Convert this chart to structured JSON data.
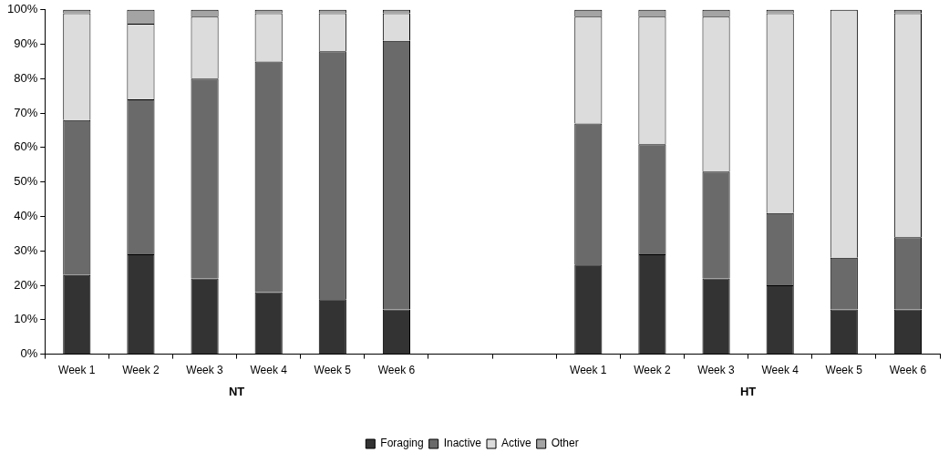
{
  "chart_data": {
    "type": "bar",
    "stacked": true,
    "categories": [
      "Week 1",
      "Week 2",
      "Week 3",
      "Week 4",
      "Week 5",
      "Week 6",
      null,
      null,
      "Week 1",
      "Week 2",
      "Week 3",
      "Week 4",
      "Week 5",
      "Week 6"
    ],
    "series": [
      {
        "name": "Foraging",
        "color": "#333333",
        "values": [
          23,
          29,
          22,
          18,
          16,
          13,
          null,
          null,
          26,
          29,
          22,
          20,
          13,
          13
        ]
      },
      {
        "name": "Inactive",
        "color": "#6a6a6a",
        "values": [
          45,
          45,
          58,
          67,
          72,
          78,
          null,
          null,
          41,
          32,
          31,
          21,
          15,
          21
        ]
      },
      {
        "name": "Active",
        "color": "#dcdcdc",
        "values": [
          31,
          22,
          18,
          14,
          11,
          8,
          null,
          null,
          31,
          37,
          45,
          58,
          72,
          65
        ]
      },
      {
        "name": "Other",
        "color": "#a4a4a4",
        "values": [
          1,
          4,
          2,
          1,
          1,
          1,
          null,
          null,
          2,
          2,
          2,
          1,
          0,
          1
        ]
      }
    ],
    "ylim": [
      0,
      100
    ],
    "yticks": [
      {
        "value": 0,
        "label": "0%"
      },
      {
        "value": 10,
        "label": "10%"
      },
      {
        "value": 20,
        "label": "20%"
      },
      {
        "value": 30,
        "label": "30%"
      },
      {
        "value": 40,
        "label": "40%"
      },
      {
        "value": 50,
        "label": "50%"
      },
      {
        "value": 60,
        "label": "60%"
      },
      {
        "value": 70,
        "label": "70%"
      },
      {
        "value": 80,
        "label": "80%"
      },
      {
        "value": 90,
        "label": "90%"
      },
      {
        "value": 100,
        "label": "100%"
      }
    ],
    "grid": false,
    "legend": "bottom",
    "annotations": [
      "NT",
      "HT"
    ]
  }
}
